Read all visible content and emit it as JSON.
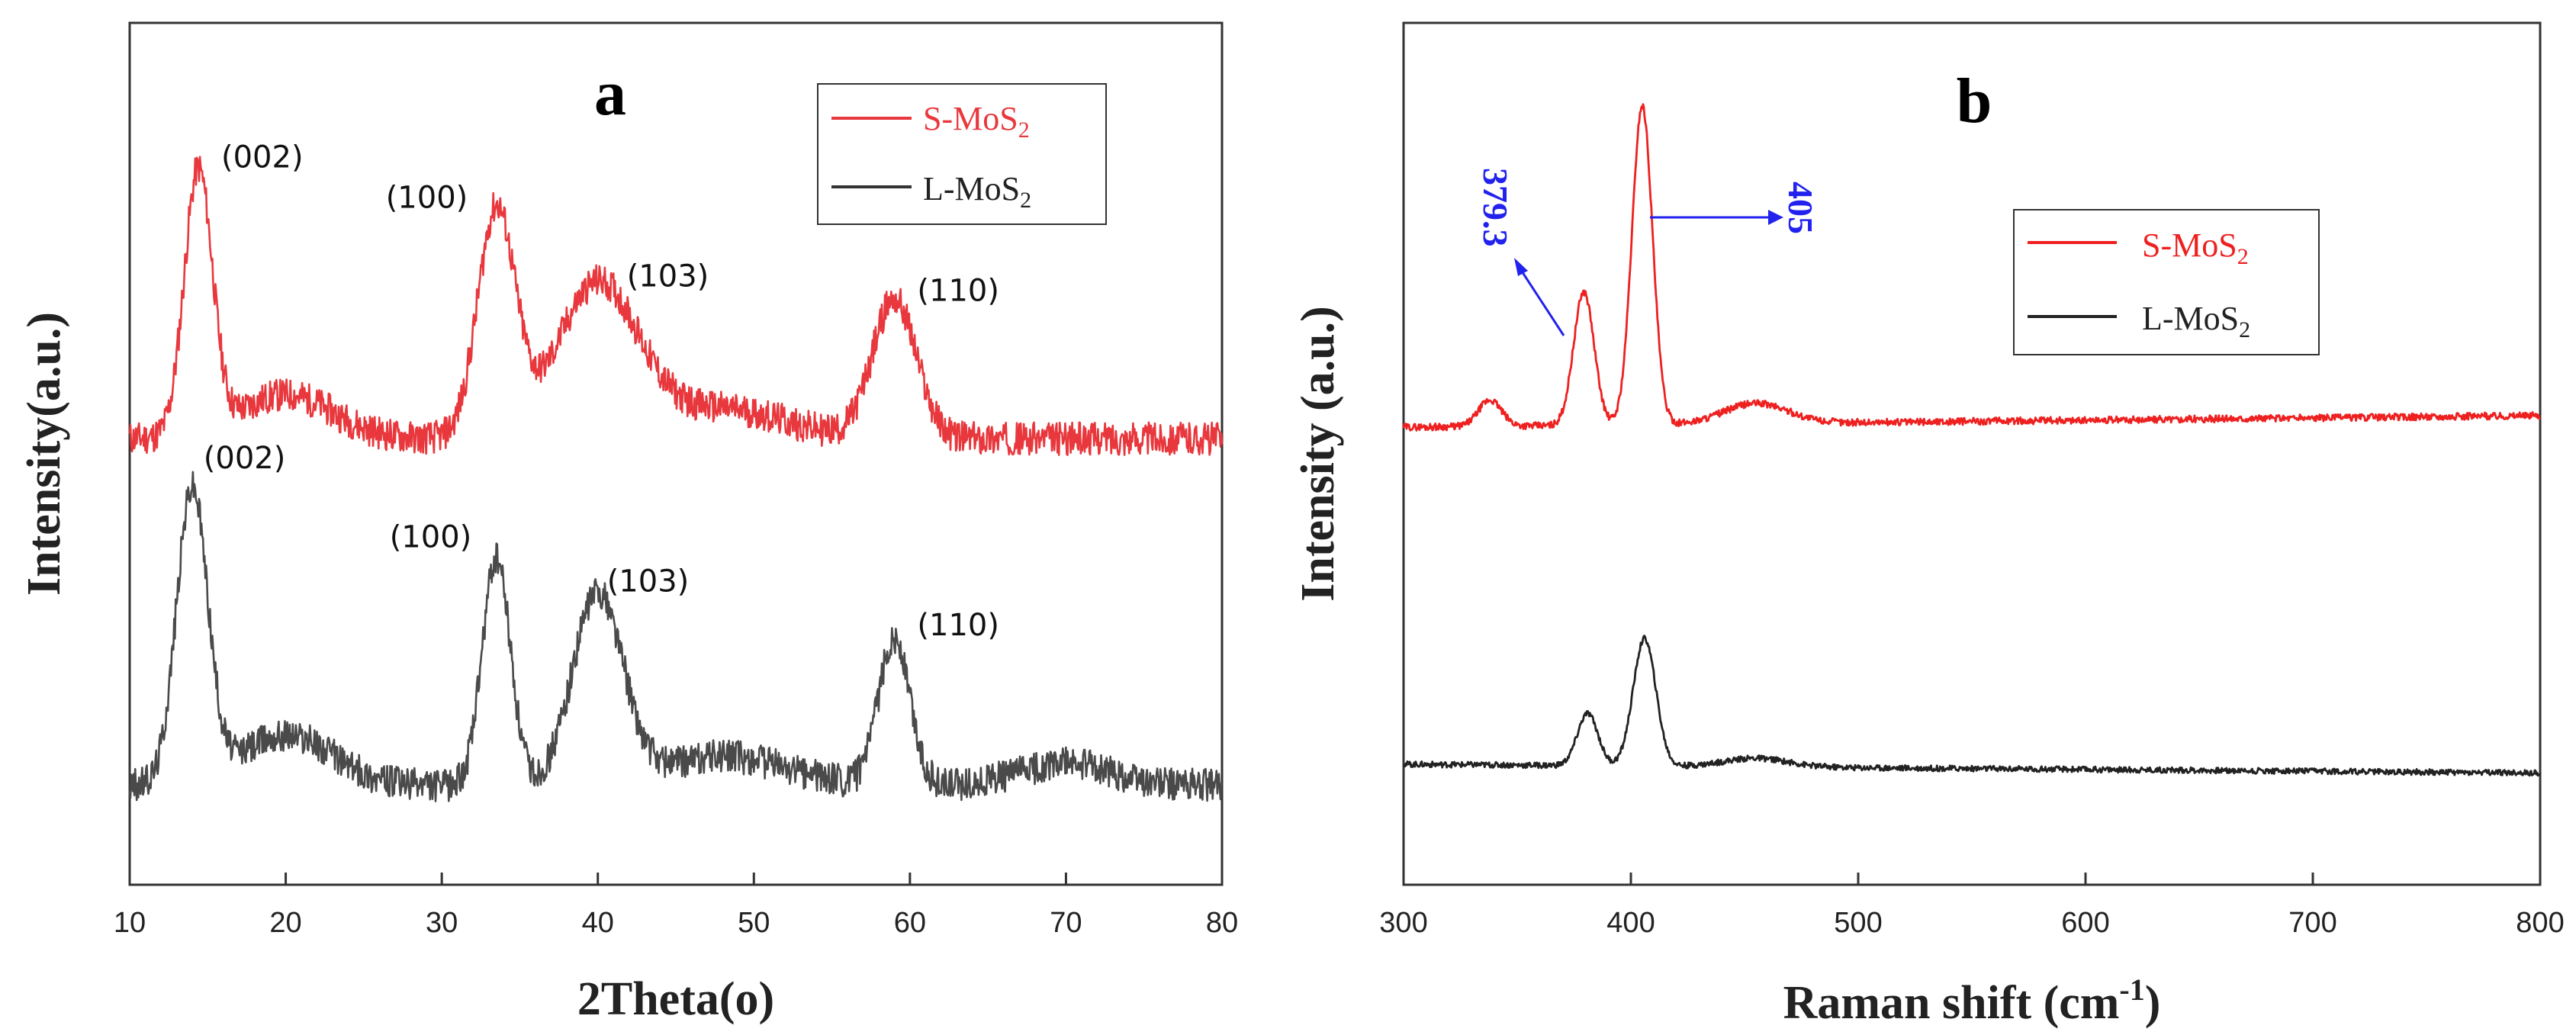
{
  "chart_data": [
    {
      "type": "line",
      "panel": "a",
      "xlabel": "2Theta(o)",
      "ylabel": "Intensity(a.u.)",
      "xlim": [
        10,
        80
      ],
      "xticks": [
        "10",
        "20",
        "30",
        "40",
        "50",
        "60",
        "70",
        "80"
      ],
      "legend": {
        "position": "top-right",
        "entries": [
          {
            "name": "S-MoS",
            "sub": "2",
            "color": "#e8383d"
          },
          {
            "name": "L-MoS",
            "sub": "2",
            "color": "#333333"
          }
        ]
      },
      "series": [
        {
          "name": "S-MoS2",
          "color": "#e8383d",
          "baseline": 0.0,
          "noise": 0.045,
          "slope": 0.0,
          "peaks": [
            {
              "x": 14.4,
              "height": 0.72,
              "width": 0.9,
              "label": "(002)"
            },
            {
              "x": 33.5,
              "height": 0.62,
              "width": 1.2,
              "label": "(100)"
            },
            {
              "x": 40.0,
              "height": 0.42,
              "width": 2.6,
              "label": "(103)"
            },
            {
              "x": 59.0,
              "height": 0.38,
              "width": 1.4,
              "label": "(110)"
            }
          ],
          "bumps": [
            {
              "x": 20,
              "height": 0.12,
              "width": 3
            },
            {
              "x": 48,
              "height": 0.08,
              "width": 4
            }
          ]
        },
        {
          "name": "L-MoS2",
          "color": "#4a4a4a",
          "baseline": 0.0,
          "noise": 0.045,
          "slope": 0.0,
          "peaks": [
            {
              "x": 14.0,
              "height": 0.8,
              "width": 1.0,
              "label": "(002)"
            },
            {
              "x": 33.5,
              "height": 0.62,
              "width": 0.9,
              "label": "(100)"
            },
            {
              "x": 40.0,
              "height": 0.52,
              "width": 1.6,
              "label": "(103)"
            },
            {
              "x": 59.0,
              "height": 0.4,
              "width": 1.0,
              "label": "(110)"
            }
          ],
          "bumps": [
            {
              "x": 20,
              "height": 0.14,
              "width": 3
            },
            {
              "x": 48,
              "height": 0.08,
              "width": 4
            },
            {
              "x": 70,
              "height": 0.06,
              "width": 3
            }
          ]
        }
      ]
    },
    {
      "type": "line",
      "panel": "b",
      "xlabel": "Raman shift (cm",
      "xlabel_sup": "-1",
      "xlabel_close": ")",
      "ylabel": "Intensity (a.u.)",
      "xlim": [
        300,
        800
      ],
      "xticks": [
        "300",
        "400",
        "500",
        "600",
        "700",
        "800"
      ],
      "legend": {
        "position": "upper-center",
        "entries": [
          {
            "name": "S-MoS",
            "sub": "2",
            "color": "#ee2020"
          },
          {
            "name": "L-MoS",
            "sub": "2",
            "color": "#222222"
          }
        ]
      },
      "annotations": [
        {
          "text": "379.3",
          "x": 379.3,
          "color": "#2222ee"
        },
        {
          "text": "405",
          "x": 405,
          "color": "#2222ee"
        }
      ],
      "series": [
        {
          "name": "S-MoS2",
          "color": "#ee2020",
          "noise": 0.006,
          "peaks": [
            {
              "x": 338,
              "height": 0.045,
              "width": 5
            },
            {
              "x": 379.3,
              "height": 0.23,
              "width": 4.5
            },
            {
              "x": 405,
              "height": 0.55,
              "width": 4.5
            }
          ],
          "bumps": [
            {
              "x": 455,
              "height": 0.035,
              "width": 14
            }
          ],
          "baseline_start": 0.0,
          "baseline_end": 0.02
        },
        {
          "name": "L-MoS2",
          "color": "#222222",
          "noise": 0.005,
          "peaks": [
            {
              "x": 381,
              "height": 0.09,
              "width": 4.5
            },
            {
              "x": 406,
              "height": 0.22,
              "width": 5
            }
          ],
          "bumps": [
            {
              "x": 455,
              "height": 0.015,
              "width": 14
            }
          ],
          "baseline_start": 0.0,
          "baseline_end": -0.015
        }
      ]
    }
  ]
}
